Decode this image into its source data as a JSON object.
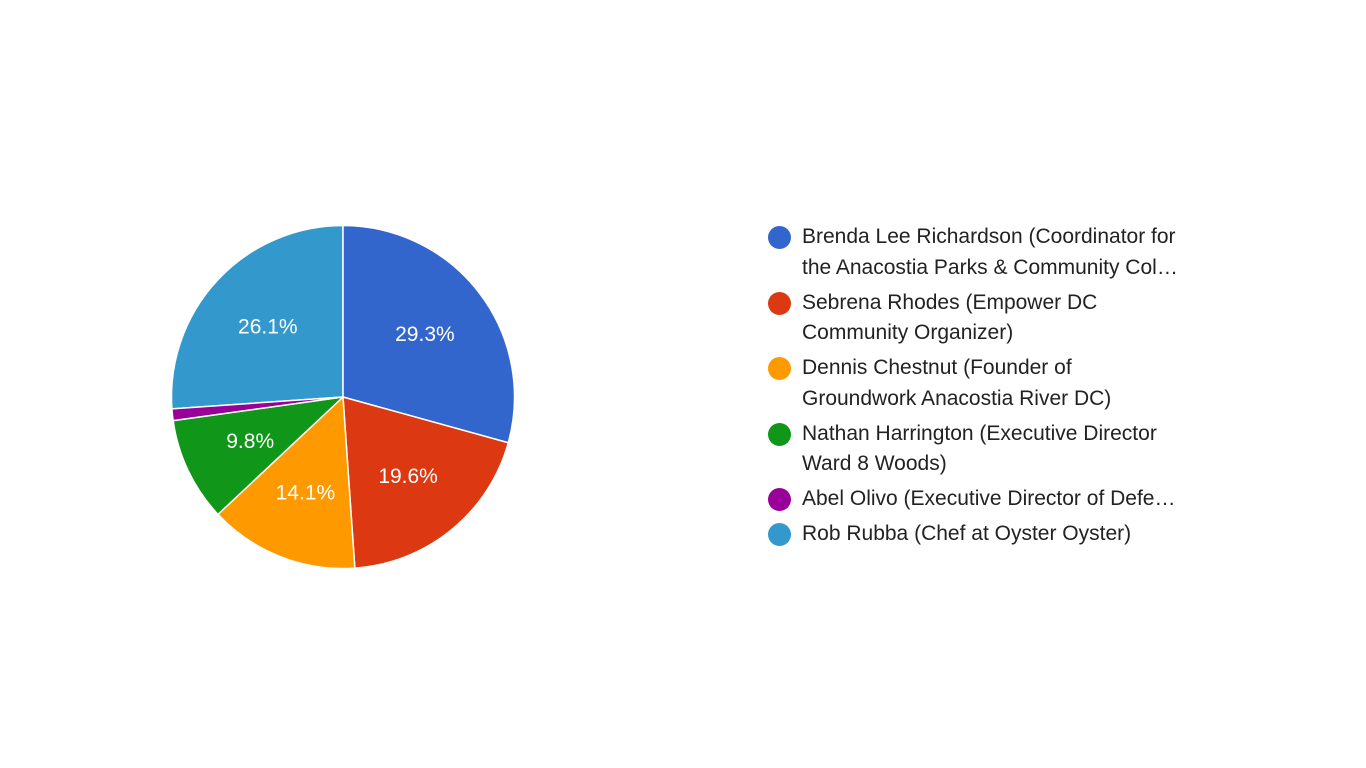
{
  "chart_data": {
    "type": "pie",
    "title": "",
    "legend_position": "right",
    "slice_start": "12 o'clock, clockwise",
    "slices": [
      {
        "legend_text": "Brenda Lee Richardson (Coordinator for\nthe Anacostia Parks & Community Col…",
        "value": 29.3,
        "label": "29.3%",
        "color": "#3366cc"
      },
      {
        "legend_text": "Sebrena Rhodes (Empower DC\nCommunity Organizer)",
        "value": 19.6,
        "label": "19.6%",
        "color": "#dc3912"
      },
      {
        "legend_text": "Dennis Chestnut (Founder of\nGroundwork Anacostia River DC)",
        "value": 14.1,
        "label": "14.1%",
        "color": "#ff9900"
      },
      {
        "legend_text": "Nathan Harrington (Executive Director\nWard 8 Woods)",
        "value": 9.8,
        "label": "9.8%",
        "color": "#109618"
      },
      {
        "legend_text": "Abel Olivo (Executive Director of Defe…",
        "value": 1.1,
        "label": "",
        "color": "#990099"
      },
      {
        "legend_text": "Rob Rubba (Chef at Oyster Oyster)",
        "value": 26.1,
        "label": "26.1%",
        "color": "#3399cc"
      }
    ],
    "draw_order": [
      5,
      0,
      1,
      2,
      3,
      4
    ]
  }
}
